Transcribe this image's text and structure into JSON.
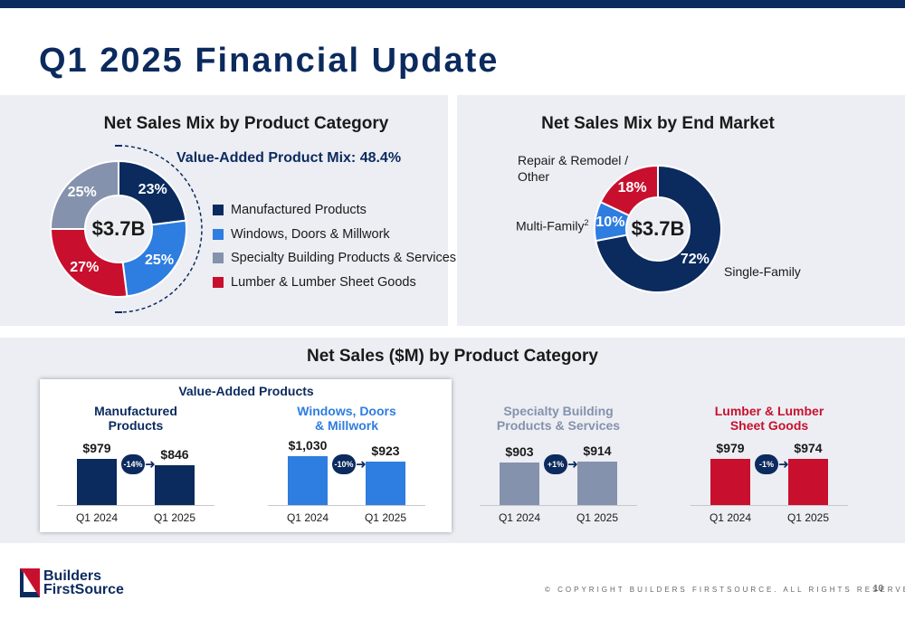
{
  "title": "Q1 2025 Financial Update",
  "colors": {
    "navy": "#0b2a5e",
    "blue": "#2e7de0",
    "gray": "#8592ad",
    "red": "#c8102e"
  },
  "left_panel": {
    "title": "Net Sales Mix by Product Category",
    "va_mix": "Value-Added Product Mix: 48.4%",
    "center": "$3.7B",
    "legend": [
      "Manufactured Products",
      "Windows, Doors & Millwork",
      "Specialty Building Products & Services",
      "Lumber & Lumber Sheet Goods"
    ]
  },
  "right_panel": {
    "title": "Net Sales Mix by End Market",
    "center": "$3.7B",
    "labels": {
      "single": "Single-Family",
      "multi": "Multi-Family",
      "multi_sup": "2",
      "repair_l1": "Repair & Remodel /",
      "repair_l2": "Other"
    }
  },
  "bottom": {
    "title": "Net Sales ($M) by Product Category",
    "va_title": "Value-Added Products",
    "cat_lines": [
      [
        "Manufactured",
        "Products"
      ],
      [
        "Windows, Doors",
        "& Millwork"
      ],
      [
        "Specialty Building",
        "Products & Services"
      ],
      [
        "Lumber & Lumber",
        "Sheet Goods"
      ]
    ]
  },
  "footer": {
    "logo_l1": "Builders",
    "logo_l2": "FirstSource",
    "copyright": "© COPYRIGHT BUILDERS FIRSTSOURCE. ALL RIGHTS RESERVED.",
    "page": "10"
  },
  "chart_data": [
    {
      "type": "pie",
      "title": "Net Sales Mix by Product Category",
      "center_label": "$3.7B",
      "categories": [
        "Manufactured Products",
        "Windows, Doors & Millwork",
        "Lumber & Lumber Sheet Goods",
        "Specialty Building Products & Services"
      ],
      "values": [
        23,
        25,
        27,
        25
      ],
      "labels": [
        "23%",
        "25%",
        "27%",
        "25%"
      ],
      "colors": [
        "#0b2a5e",
        "#2e7de0",
        "#c8102e",
        "#8592ad"
      ]
    },
    {
      "type": "pie",
      "title": "Net Sales Mix by End Market",
      "center_label": "$3.7B",
      "categories": [
        "Single-Family",
        "Multi-Family",
        "Repair & Remodel / Other"
      ],
      "values": [
        72,
        10,
        18
      ],
      "labels": [
        "72%",
        "10%",
        "18%"
      ],
      "colors": [
        "#0b2a5e",
        "#2e7de0",
        "#c8102e"
      ]
    },
    {
      "type": "bar",
      "title": "Net Sales ($M) by Product Category",
      "categories": [
        "Q1 2024",
        "Q1 2025"
      ],
      "series": [
        {
          "name": "Manufactured Products",
          "values": [
            979,
            846
          ],
          "labels": [
            "$979",
            "$846"
          ],
          "change": "-14%",
          "color": "#0b2a5e"
        },
        {
          "name": "Windows, Doors & Millwork",
          "values": [
            1030,
            923
          ],
          "labels": [
            "$1,030",
            "$923"
          ],
          "change": "-10%",
          "color": "#2e7de0"
        },
        {
          "name": "Specialty Building Products & Services",
          "values": [
            903,
            914
          ],
          "labels": [
            "$903",
            "$914"
          ],
          "change": "+1%",
          "color": "#8592ad"
        },
        {
          "name": "Lumber & Lumber Sheet Goods",
          "values": [
            979,
            974
          ],
          "labels": [
            "$979",
            "$974"
          ],
          "change": "-1%",
          "color": "#c8102e"
        }
      ]
    }
  ]
}
